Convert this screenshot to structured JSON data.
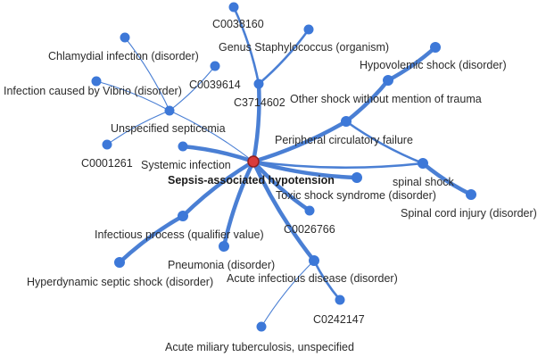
{
  "graph": {
    "center": {
      "id": "center",
      "label": "Sepsis-associated hypotension"
    },
    "nodes": [
      {
        "id": "c0038160",
        "label": "C0038160"
      },
      {
        "id": "genus-staph",
        "label": "Genus Staphylococcus (organism)"
      },
      {
        "id": "c3714602",
        "label": "C3714602"
      },
      {
        "id": "chlamydial",
        "label": "Chlamydial infection (disorder)"
      },
      {
        "id": "c0039614",
        "label": "C0039614"
      },
      {
        "id": "vibrio",
        "label": "Infection caused by Vibrio (disorder)"
      },
      {
        "id": "unspecified-septicemia",
        "label": "Unspecified septicemia"
      },
      {
        "id": "c0001261",
        "label": "C0001261"
      },
      {
        "id": "systemic-infection",
        "label": "Systemic infection"
      },
      {
        "id": "hypovolemic-shock",
        "label": "Hypovolemic shock (disorder)"
      },
      {
        "id": "other-shock",
        "label": "Other shock without mention of trauma"
      },
      {
        "id": "peripheral-circulatory",
        "label": "Peripheral circulatory failure"
      },
      {
        "id": "spinal-shock",
        "label": "spinal shock"
      },
      {
        "id": "spinal-cord-injury",
        "label": "Spinal cord injury (disorder)"
      },
      {
        "id": "toxic-shock",
        "label": "Toxic shock syndrome (disorder)"
      },
      {
        "id": "c0026766",
        "label": "C0026766"
      },
      {
        "id": "infectious-process",
        "label": "Infectious process (qualifier value)"
      },
      {
        "id": "pneumonia",
        "label": "Pneumonia (disorder)"
      },
      {
        "id": "hyperdynamic",
        "label": "Hyperdynamic septic shock (disorder)"
      },
      {
        "id": "acute-infectious",
        "label": "Acute infectious disease (disorder)"
      },
      {
        "id": "c0242147",
        "label": "C0242147"
      },
      {
        "id": "acute-miliary-tb",
        "label": "Acute miliary tuberculosis, unspecified"
      }
    ],
    "edges": [
      {
        "from": "center",
        "to": "c3714602",
        "weight": "thick"
      },
      {
        "from": "c3714602",
        "to": "c0038160",
        "weight": "medium"
      },
      {
        "from": "c3714602",
        "to": "genus-staph",
        "weight": "medium"
      },
      {
        "from": "center",
        "to": "unspecified-septicemia",
        "weight": "thin"
      },
      {
        "from": "unspecified-septicemia",
        "to": "chlamydial",
        "weight": "thin"
      },
      {
        "from": "unspecified-septicemia",
        "to": "c0039614",
        "weight": "thin"
      },
      {
        "from": "unspecified-septicemia",
        "to": "vibrio",
        "weight": "thin"
      },
      {
        "from": "unspecified-septicemia",
        "to": "c0001261",
        "weight": "thin"
      },
      {
        "from": "center",
        "to": "systemic-infection",
        "weight": "thick"
      },
      {
        "from": "center",
        "to": "peripheral-circulatory",
        "weight": "thick"
      },
      {
        "from": "peripheral-circulatory",
        "to": "other-shock",
        "weight": "thick"
      },
      {
        "from": "other-shock",
        "to": "hypovolemic-shock",
        "weight": "thick"
      },
      {
        "from": "peripheral-circulatory",
        "to": "spinal-shock",
        "weight": "medium"
      },
      {
        "from": "center",
        "to": "spinal-shock",
        "weight": "medium"
      },
      {
        "from": "spinal-shock",
        "to": "spinal-cord-injury",
        "weight": "thick"
      },
      {
        "from": "center",
        "to": "toxic-shock",
        "weight": "thick"
      },
      {
        "from": "center",
        "to": "c0026766",
        "weight": "thick"
      },
      {
        "from": "center",
        "to": "infectious-process",
        "weight": "thick"
      },
      {
        "from": "infectious-process",
        "to": "hyperdynamic",
        "weight": "thick"
      },
      {
        "from": "center",
        "to": "pneumonia",
        "weight": "thick"
      },
      {
        "from": "center",
        "to": "acute-infectious",
        "weight": "thick"
      },
      {
        "from": "acute-infectious",
        "to": "c0242147",
        "weight": "medium"
      },
      {
        "from": "acute-infectious",
        "to": "acute-miliary-tb",
        "weight": "thin"
      }
    ]
  },
  "colors": {
    "edge": "#4a7fd4",
    "node": "#3d78d8",
    "center_node": "#d93b3b",
    "center_node_outline": "#8f1f1f",
    "label": "#2b2b2b"
  }
}
